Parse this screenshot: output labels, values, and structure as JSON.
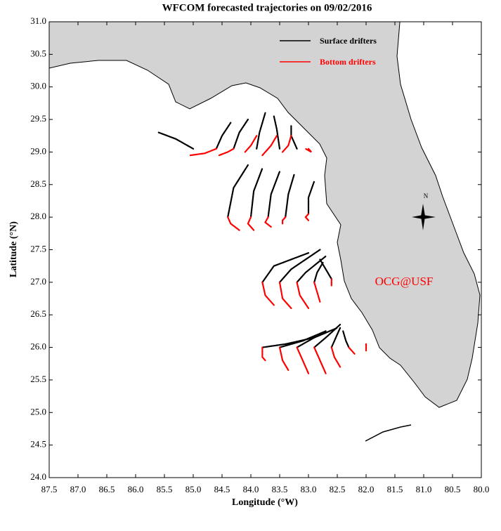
{
  "chart_data": {
    "type": "map",
    "title": "WFCOM forecasted trajectories on 09/02/2016",
    "x_label": "Longitude (°W)",
    "y_label": "Latitude (°N)",
    "annotation": "OCG@USF",
    "compass_label": "N",
    "xlim": [
      87.5,
      80.0
    ],
    "ylim": [
      24.0,
      31.0
    ],
    "xticks": [
      87.5,
      {
        "value": 87,
        "label": "87.0"
      },
      86.5,
      {
        "value": 86,
        "label": "86.0"
      },
      85.5,
      {
        "value": 85,
        "label": "85.0"
      },
      84.5,
      {
        "value": 84,
        "label": "84.0"
      },
      83.5,
      {
        "value": 83,
        "label": "83.0"
      },
      82.5,
      {
        "value": 82,
        "label": "82.0"
      },
      81.5,
      {
        "value": 81,
        "label": "81.0"
      },
      80.5,
      {
        "value": 80,
        "label": "80.0"
      }
    ],
    "yticks": [
      {
        "value": 24,
        "label": "24.0"
      },
      24.5,
      {
        "value": 25,
        "label": "25.0"
      },
      25.5,
      {
        "value": 26,
        "label": "26.0"
      },
      26.5,
      {
        "value": 27,
        "label": "27.0"
      },
      27.5,
      {
        "value": 28,
        "label": "28.0"
      },
      28.5,
      {
        "value": 29,
        "label": "29.0"
      },
      29.5,
      {
        "value": 30,
        "label": "30.0"
      },
      30.5,
      {
        "value": 31,
        "label": "31.0"
      }
    ],
    "series": [
      {
        "name": "Surface drifters",
        "color": "#000000",
        "tracks": [
          {
            "x": [
              85.0,
              85.3,
              85.6
            ],
            "y": [
              29.05,
              29.2,
              29.3
            ]
          },
          {
            "x": [
              84.6,
              84.5,
              84.35
            ],
            "y": [
              29.05,
              29.25,
              29.45
            ]
          },
          {
            "x": [
              84.3,
              84.2,
              84.05
            ],
            "y": [
              29.05,
              29.3,
              29.5
            ]
          },
          {
            "x": [
              83.9,
              83.85,
              83.75
            ],
            "y": [
              29.05,
              29.3,
              29.6
            ]
          },
          {
            "x": [
              83.5,
              83.55,
              83.6
            ],
            "y": [
              29.05,
              29.35,
              29.55
            ]
          },
          {
            "x": [
              83.2,
              83.3,
              83.3
            ],
            "y": [
              29.05,
              29.25,
              29.4
            ]
          },
          {
            "x": [
              84.4,
              84.3,
              84.05
            ],
            "y": [
              28.0,
              28.45,
              28.8
            ]
          },
          {
            "x": [
              84.0,
              83.95,
              83.8
            ],
            "y": [
              28.0,
              28.4,
              28.75
            ]
          },
          {
            "x": [
              83.7,
              83.65,
              83.5
            ],
            "y": [
              28.0,
              28.35,
              28.7
            ]
          },
          {
            "x": [
              83.4,
              83.35,
              83.25
            ],
            "y": [
              28.0,
              28.35,
              28.65
            ]
          },
          {
            "x": [
              83.0,
              83.0,
              82.9
            ],
            "y": [
              28.05,
              28.3,
              28.55
            ]
          },
          {
            "x": [
              83.8,
              83.6,
              83.0
            ],
            "y": [
              27.0,
              27.25,
              27.45
            ]
          },
          {
            "x": [
              83.5,
              83.3,
              82.8
            ],
            "y": [
              27.0,
              27.2,
              27.5
            ]
          },
          {
            "x": [
              83.2,
              83.05,
              82.7
            ],
            "y": [
              27.0,
              27.15,
              27.4
            ]
          },
          {
            "x": [
              82.9,
              82.85,
              82.75
            ],
            "y": [
              27.0,
              27.15,
              27.3
            ]
          },
          {
            "x": [
              82.6,
              82.7,
              82.8
            ],
            "y": [
              27.05,
              27.2,
              27.35
            ]
          },
          {
            "x": [
              83.8,
              83.4,
              82.9
            ],
            "y": [
              26.0,
              26.05,
              26.15
            ]
          },
          {
            "x": [
              83.5,
              83.1,
              82.7
            ],
            "y": [
              26.0,
              26.1,
              26.25
            ]
          },
          {
            "x": [
              83.2,
              82.9,
              82.5
            ],
            "y": [
              26.0,
              26.15,
              26.3
            ]
          },
          {
            "x": [
              82.9,
              82.7,
              82.45
            ],
            "y": [
              26.0,
              26.15,
              26.35
            ]
          },
          {
            "x": [
              82.6,
              82.55,
              82.45
            ],
            "y": [
              26.0,
              26.1,
              26.3
            ]
          },
          {
            "x": [
              82.3,
              82.35,
              82.4
            ],
            "y": [
              26.0,
              26.1,
              26.25
            ]
          }
        ]
      },
      {
        "name": "Bottom drifters",
        "color": "#ff0000",
        "tracks": [
          {
            "x": [
              84.6,
              84.8,
              85.05
            ],
            "y": [
              29.05,
              28.98,
              28.95
            ]
          },
          {
            "x": [
              84.3,
              84.4,
              84.55
            ],
            "y": [
              29.05,
              29.0,
              28.95
            ]
          },
          {
            "x": [
              83.9,
              84.0,
              84.1
            ],
            "y": [
              29.25,
              29.1,
              29.0
            ]
          },
          {
            "x": [
              83.55,
              83.65,
              83.8
            ],
            "y": [
              29.25,
              29.1,
              28.95
            ]
          },
          {
            "x": [
              83.3,
              83.35,
              83.45
            ],
            "y": [
              29.25,
              29.1,
              29.0
            ]
          },
          {
            "x": [
              83.0,
              82.95,
              83.05
            ],
            "y": [
              29.05,
              29.0,
              29.05
            ]
          },
          {
            "x": [
              84.4,
              84.35,
              84.2
            ],
            "y": [
              28.0,
              27.9,
              27.8
            ]
          },
          {
            "x": [
              84.0,
              84.05,
              83.95
            ],
            "y": [
              28.0,
              27.9,
              27.8
            ]
          },
          {
            "x": [
              83.7,
              83.75,
              83.65
            ],
            "y": [
              28.0,
              27.92,
              27.85
            ]
          },
          {
            "x": [
              83.4,
              83.45,
              83.45
            ],
            "y": [
              28.0,
              27.95,
              27.9
            ]
          },
          {
            "x": [
              83.0,
              83.05,
              83.0
            ],
            "y": [
              28.05,
              28.0,
              27.95
            ]
          },
          {
            "x": [
              83.8,
              83.75,
              83.6
            ],
            "y": [
              27.0,
              26.8,
              26.65
            ]
          },
          {
            "x": [
              83.5,
              83.45,
              83.3
            ],
            "y": [
              27.0,
              26.75,
              26.6
            ]
          },
          {
            "x": [
              83.2,
              83.15,
              83.0
            ],
            "y": [
              27.0,
              26.8,
              26.6
            ]
          },
          {
            "x": [
              82.9,
              82.85,
              82.8
            ],
            "y": [
              27.0,
              26.85,
              26.7
            ]
          },
          {
            "x": [
              82.6,
              82.6,
              82.6
            ],
            "y": [
              27.05,
              27.0,
              26.95
            ]
          },
          {
            "x": [
              83.8,
              83.8,
              83.75
            ],
            "y": [
              26.0,
              25.85,
              25.8
            ]
          },
          {
            "x": [
              83.5,
              83.45,
              83.35
            ],
            "y": [
              26.0,
              25.8,
              25.65
            ]
          },
          {
            "x": [
              83.2,
              83.1,
              83.0
            ],
            "y": [
              26.0,
              25.8,
              25.6
            ]
          },
          {
            "x": [
              82.9,
              82.8,
              82.7
            ],
            "y": [
              26.0,
              25.8,
              25.6
            ]
          },
          {
            "x": [
              82.6,
              82.55,
              82.45
            ],
            "y": [
              26.0,
              25.85,
              25.7
            ]
          },
          {
            "x": [
              82.3,
              82.25,
              82.2
            ],
            "y": [
              26.0,
              25.95,
              25.9
            ]
          },
          {
            "x": [
              82.0,
              82.0,
              82.0
            ],
            "y": [
              26.05,
              26.0,
              25.95
            ]
          }
        ]
      }
    ]
  }
}
